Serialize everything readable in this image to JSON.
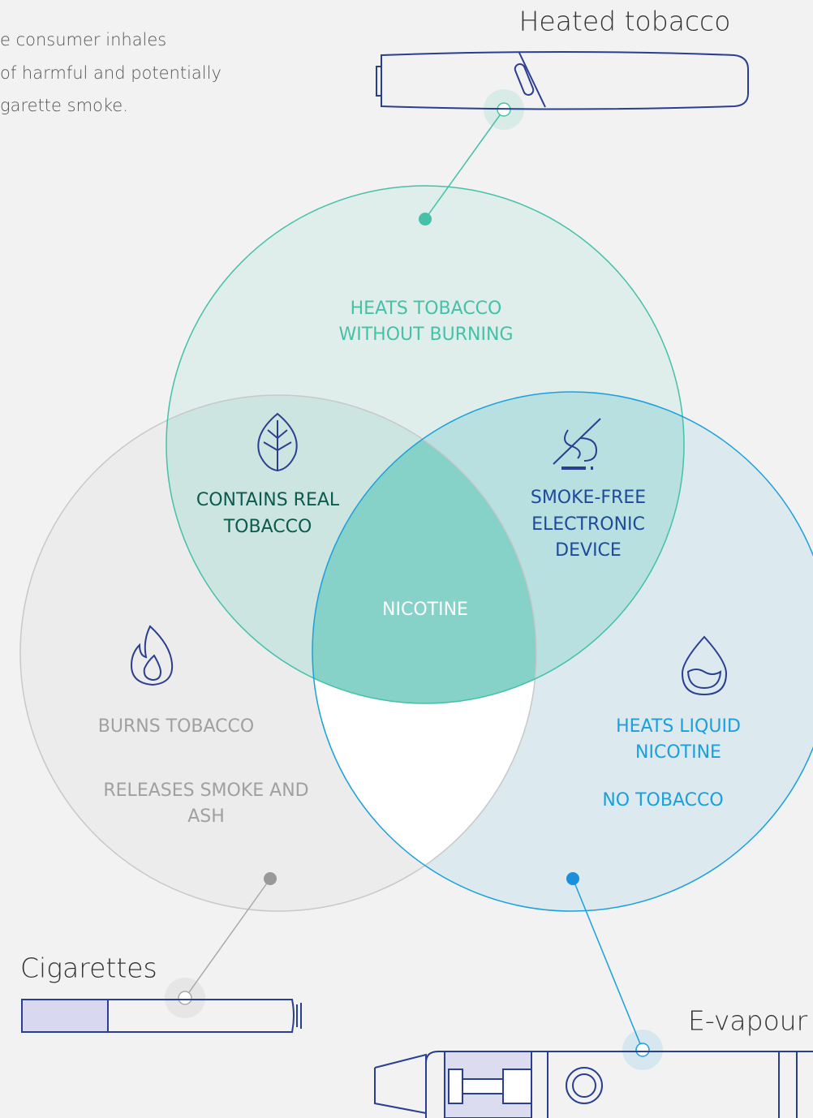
{
  "intro": [
    "e consumer inhales",
    "of harmful and potentially",
    "garette smoke."
  ],
  "products": {
    "heated": "Heated tobacco",
    "cigarettes": "Cigarettes",
    "evapour": "E-vapour"
  },
  "regions": {
    "heats_tobacco": [
      "HEATS TOBACCO",
      "WITHOUT BURNING"
    ],
    "contains_real_tobacco": [
      "CONTAINS REAL",
      "TOBACCO"
    ],
    "smoke_free": [
      "SMOKE-FREE",
      "ELECTRONIC",
      "DEVICE"
    ],
    "nicotine": [
      "NICOTINE"
    ],
    "burns_tobacco": [
      "BURNS TOBACCO"
    ],
    "releases_smoke": [
      "RELEASES SMOKE AND",
      "ASH"
    ],
    "heats_liquid": [
      "HEATS LIQUID",
      "NICOTINE"
    ],
    "no_tobacco": [
      "NO TOBACCO"
    ]
  }
}
